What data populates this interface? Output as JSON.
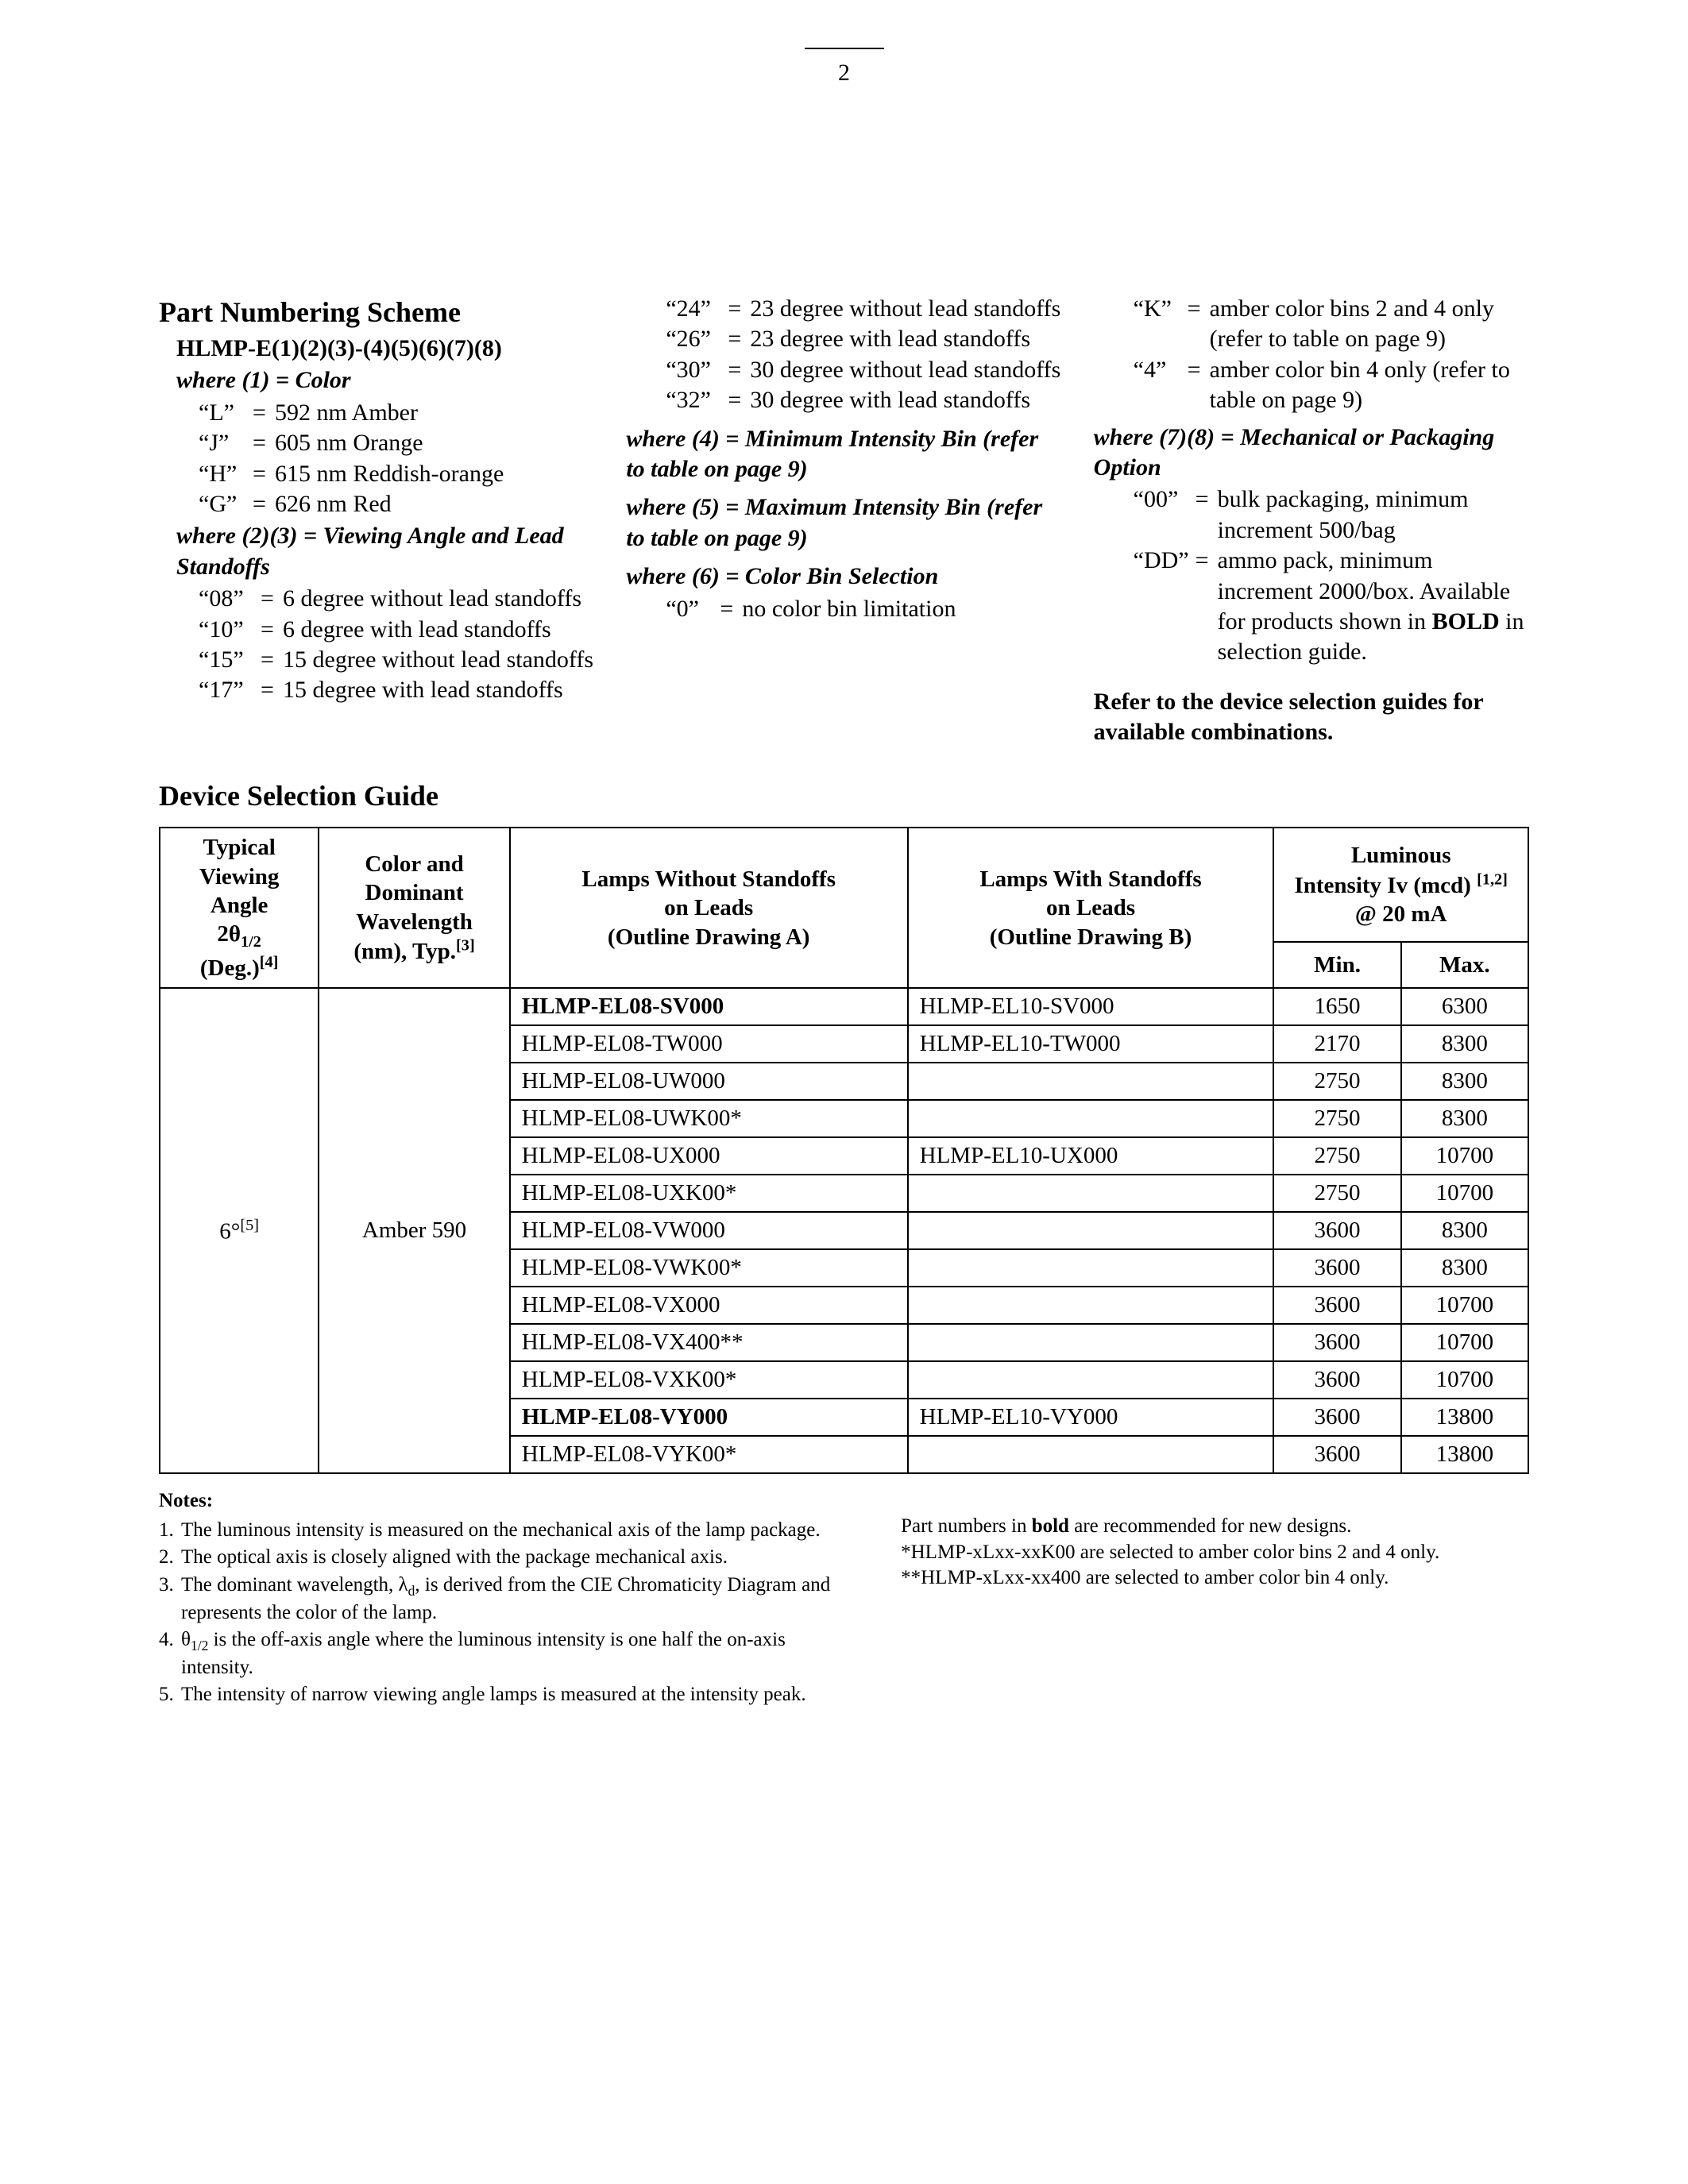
{
  "page_number": "2",
  "scheme": {
    "title": "Part Numbering Scheme",
    "pattern": "HLMP-E(1)(2)(3)-(4)(5)(6)(7)(8)",
    "where1_label": "where (1) = Color",
    "where1": [
      {
        "k": "“L”",
        "v": "592 nm Amber"
      },
      {
        "k": "“J”",
        "v": "605 nm Orange"
      },
      {
        "k": "“H”",
        "v": "615 nm Reddish-orange"
      },
      {
        "k": "“G”",
        "v": "626 nm Red"
      }
    ],
    "where23_label": "where (2)(3) = Viewing Angle and Lead Standoffs",
    "where23": [
      {
        "k": "“08”",
        "v": "6 degree without lead standoffs"
      },
      {
        "k": "“10”",
        "v": "6 degree with lead standoffs"
      },
      {
        "k": "“15”",
        "v": "15 degree without lead standoffs"
      },
      {
        "k": "“17”",
        "v": "15 degree with lead standoffs"
      },
      {
        "k": "“24”",
        "v": "23 degree without lead standoffs"
      },
      {
        "k": "“26”",
        "v": "23 degree with lead standoffs"
      },
      {
        "k": "“30”",
        "v": "30 degree without lead standoffs"
      },
      {
        "k": "“32”",
        "v": "30 degree with lead standoffs"
      }
    ],
    "where4_label": "where (4) = Minimum Intensity Bin (refer to table on page 9)",
    "where5_label": "where (5) = Maximum Intensity Bin (refer to table on page 9)",
    "where6_label": "where (6) = Color Bin Selection",
    "where6": [
      {
        "k": "“0”",
        "v": "no color bin limitation"
      },
      {
        "k": "“K”",
        "v": "amber color bins 2 and 4 only (refer to table on page 9)"
      },
      {
        "k": "“4”",
        "v": "amber color bin 4 only (refer to table on page 9)"
      }
    ],
    "where78_label": "where (7)(8) = Mechanical or Packaging Option",
    "where78": [
      {
        "k": "“00”",
        "v": "bulk packaging, minimum increment 500/bag"
      },
      {
        "k": "“DD”",
        "v_pre": "ammo pack, minimum increment 2000/box. Available for products shown in ",
        "v_bold": "BOLD",
        "v_post": " in selection guide."
      }
    ],
    "refer": "Refer to the device selection guides for available combinations."
  },
  "table": {
    "title": "Device Selection Guide",
    "headers": {
      "angle_l1": "Typical",
      "angle_l2": "Viewing",
      "angle_l3": "Angle",
      "angle_l4_html": "2θ<sub>1/2</sub>",
      "angle_l5_html": "(Deg.)<sup>[4]</sup>",
      "color_l1": "Color and",
      "color_l2": "Dominant",
      "color_l3": "Wavelength",
      "color_l4_html": "(nm), Typ.<sup>[3]</sup>",
      "no_standoff_l1": "Lamps Without Standoffs",
      "no_standoff_l2": "on Leads",
      "no_standoff_l3": "(Outline Drawing A)",
      "standoff_l1": "Lamps With Standoffs",
      "standoff_l2": "on Leads",
      "standoff_l3": "(Outline Drawing B)",
      "lum_l1": "Luminous",
      "lum_l2_html": "Intensity Iv (mcd) <sup>[1,2]</sup>",
      "lum_l3": "@ 20 mA",
      "min": "Min.",
      "max": "Max."
    },
    "group": {
      "angle_html": "6°<sup>[5]</sup>",
      "color": "Amber 590"
    },
    "rows": [
      {
        "a": "HLMP-EL08-SV000",
        "a_bold": true,
        "b": "HLMP-EL10-SV000",
        "min": "1650",
        "max": "6300"
      },
      {
        "a": "HLMP-EL08-TW000",
        "a_bold": false,
        "b": "HLMP-EL10-TW000",
        "min": "2170",
        "max": "8300"
      },
      {
        "a": "HLMP-EL08-UW000",
        "a_bold": false,
        "b": "",
        "min": "2750",
        "max": "8300"
      },
      {
        "a": "HLMP-EL08-UWK00*",
        "a_bold": false,
        "b": "",
        "min": "2750",
        "max": "8300"
      },
      {
        "a": "HLMP-EL08-UX000",
        "a_bold": false,
        "b": "HLMP-EL10-UX000",
        "min": "2750",
        "max": "10700"
      },
      {
        "a": "HLMP-EL08-UXK00*",
        "a_bold": false,
        "b": "",
        "min": "2750",
        "max": "10700"
      },
      {
        "a": "HLMP-EL08-VW000",
        "a_bold": false,
        "b": "",
        "min": "3600",
        "max": "8300"
      },
      {
        "a": "HLMP-EL08-VWK00*",
        "a_bold": false,
        "b": "",
        "min": "3600",
        "max": "8300"
      },
      {
        "a": "HLMP-EL08-VX000",
        "a_bold": false,
        "b": "",
        "min": "3600",
        "max": "10700"
      },
      {
        "a": "HLMP-EL08-VX400**",
        "a_bold": false,
        "b": "",
        "min": "3600",
        "max": "10700"
      },
      {
        "a": "HLMP-EL08-VXK00*",
        "a_bold": false,
        "b": "",
        "min": "3600",
        "max": "10700"
      },
      {
        "a": "HLMP-EL08-VY000",
        "a_bold": true,
        "b": "HLMP-EL10-VY000",
        "min": "3600",
        "max": "13800"
      },
      {
        "a": "HLMP-EL08-VYK00*",
        "a_bold": false,
        "b": "",
        "min": "3600",
        "max": "13800"
      }
    ]
  },
  "notes": {
    "title": "Notes:",
    "items": [
      "The luminous intensity is measured on the mechanical axis of the lamp package.",
      "The optical axis is closely aligned with the package mechanical axis.",
      "",
      "",
      "The intensity of narrow viewing angle lamps is measured at the intensity peak."
    ],
    "item3_html": "The dominant wavelength, λ<sub>d</sub>, is derived from the CIE Chromaticity Diagram and represents the color of the lamp.",
    "item4_html": "θ<sub>1/2</sub> is the off-axis angle where the luminous intensity is one half the on-axis intensity.",
    "right_pre": "Part numbers in ",
    "right_bold": "bold",
    "right_post": " are recommended for new designs.",
    "right_l2": "*HLMP-xLxx-xxK00 are selected to amber color bins 2 and 4 only.",
    "right_l3": "**HLMP-xLxx-xx400 are selected to amber color bin 4 only."
  }
}
